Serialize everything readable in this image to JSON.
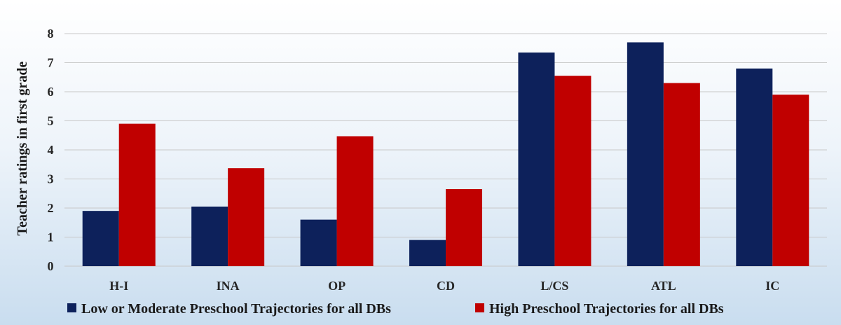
{
  "chart_data": {
    "type": "bar",
    "title": "",
    "xlabel": "",
    "ylabel": "Teacher ratings in first grade",
    "categories": [
      "H-I",
      "INA",
      "OP",
      "CD",
      "L/CS",
      "ATL",
      "IC"
    ],
    "series": [
      {
        "name": "Low or Moderate Preschool Trajectories for all DBs",
        "color": "#0d215b",
        "values": [
          1.9,
          2.05,
          1.6,
          0.9,
          7.35,
          7.7,
          6.8
        ]
      },
      {
        "name": "High Preschool Trajectories for all DBs",
        "color": "#c00000",
        "values": [
          4.9,
          3.37,
          4.47,
          2.65,
          6.55,
          6.3,
          5.9
        ]
      }
    ],
    "ylim": [
      0,
      8
    ],
    "yticks": [
      0,
      1,
      2,
      3,
      4,
      5,
      6,
      7,
      8
    ],
    "grid": true,
    "legend_position": "bottom"
  }
}
